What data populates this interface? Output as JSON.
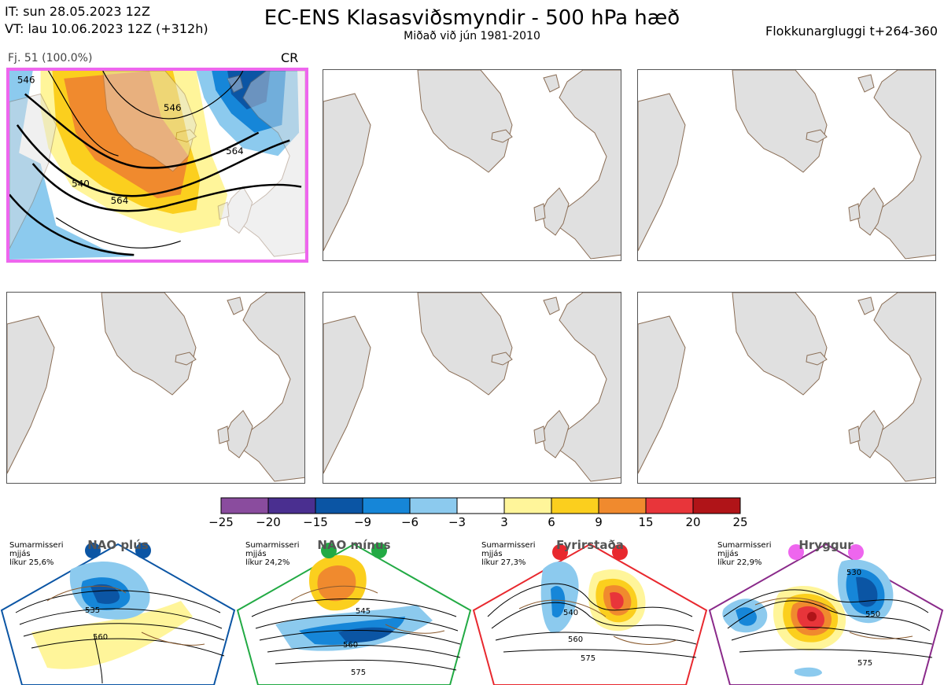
{
  "header": {
    "it_line": "IT: sun 28.05.2023 12Z",
    "vt_line": "VT: lau 10.06.2023 12Z  (+312h)",
    "title": "EC-ENS Klasasviðsmyndir - 500 hPa hæð",
    "subtitle": "Miðað við jún 1981-2010",
    "window": "Flokkunargluggi t+264-360"
  },
  "panels": [
    {
      "label": "Fj. 51 (100.0%)",
      "regime": "CR",
      "active": true,
      "contours": [
        "546",
        "564",
        "540",
        "564",
        "546"
      ]
    },
    {
      "label": "",
      "regime": "",
      "active": false
    },
    {
      "label": "",
      "regime": "",
      "active": false
    },
    {
      "label": "",
      "regime": "",
      "active": false
    },
    {
      "label": "",
      "regime": "",
      "active": false
    },
    {
      "label": "",
      "regime": "",
      "active": false
    }
  ],
  "colorbar": {
    "ticks": [
      "−25",
      "−20",
      "−15",
      "−9",
      "−6",
      "−3",
      "3",
      "6",
      "9",
      "15",
      "20",
      "25"
    ],
    "colors": [
      "#8a4c9e",
      "#4a2f90",
      "#0b55a4",
      "#1686d8",
      "#8ccaee",
      "#ffffff",
      "#fff59a",
      "#fbcf1e",
      "#f08a2e",
      "#e8353a",
      "#b01418"
    ]
  },
  "regimes": [
    {
      "name": "NAO plús",
      "season": "Sumarmisseri",
      "level": "mjjás",
      "prob": "líkur 25,6%",
      "color": "#0b55a4",
      "contours": [
        "535",
        "560"
      ]
    },
    {
      "name": "NAO mínus",
      "season": "Sumarmisseri",
      "level": "mjjás",
      "prob": "líkur 24,2%",
      "color": "#22aa44",
      "contours": [
        "545",
        "560",
        "575"
      ]
    },
    {
      "name": "Fyrirstaða",
      "season": "Sumarmisseri",
      "level": "mjjás",
      "prob": "líkur 27,3%",
      "color": "#e8282e",
      "contours": [
        "540",
        "560",
        "575"
      ]
    },
    {
      "name": "Hryggur",
      "season": "Sumarmisseri",
      "level": "mjjás",
      "prob": "líkur 22,9%",
      "color": "#ee66ee",
      "contours": [
        "530",
        "550",
        "575"
      ]
    }
  ]
}
